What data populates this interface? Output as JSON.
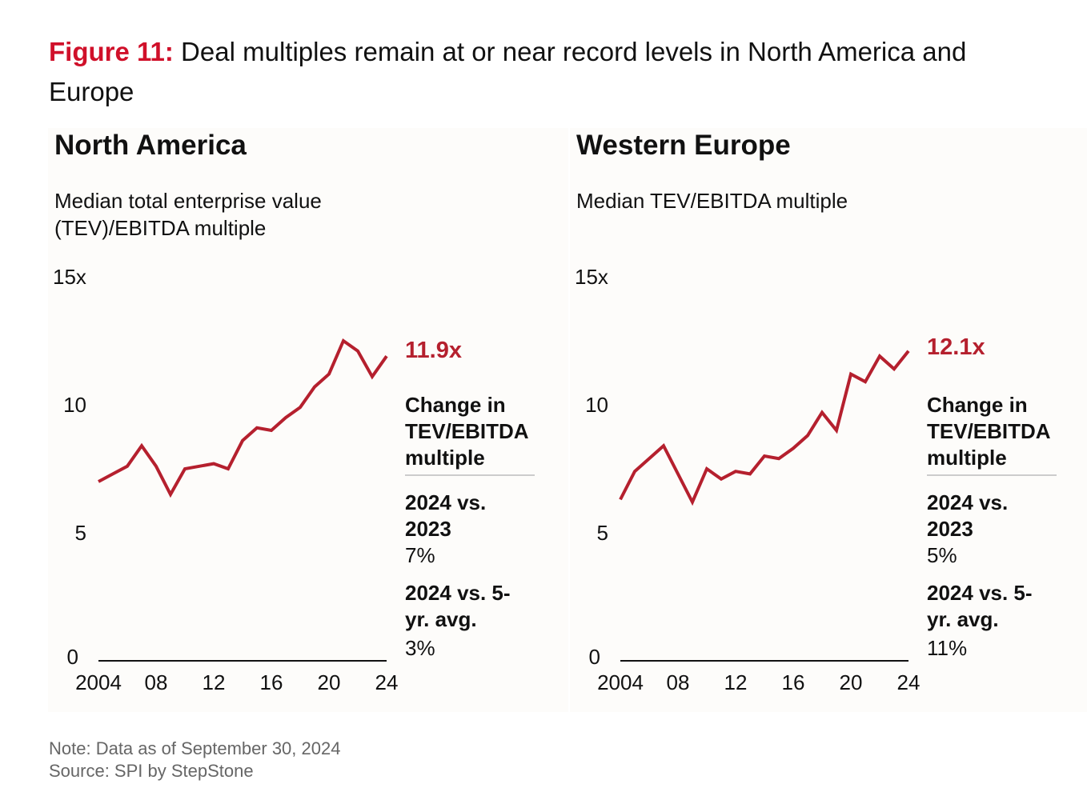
{
  "title": {
    "label": "Figure 11:",
    "text": " Deal multiples remain at or near record levels in North America and Europe"
  },
  "colors": {
    "accent": "#d0102a",
    "line": "#b5202e"
  },
  "panels": [
    {
      "heading": "North America",
      "subtitle": "Median total enterprise value (TEV)/EBITDA multiple",
      "callout": "11.9x",
      "change_heading": "Change in TEV/EBITDA multiple",
      "cmp1_label": "2024 vs. 2023",
      "cmp1_value": "7%",
      "cmp2_label": "2024 vs. 5-yr. avg.",
      "cmp2_value": "3%"
    },
    {
      "heading": "Western Europe",
      "subtitle": "Median TEV/EBITDA multiple",
      "callout": "12.1x",
      "change_heading": "Change in TEV/EBITDA multiple",
      "cmp1_label": "2024 vs. 2023",
      "cmp1_value": "5%",
      "cmp2_label": "2024 vs. 5-yr. avg.",
      "cmp2_value": "11%"
    }
  ],
  "note": "Note: Data as of September 30, 2024",
  "source": "Source: SPI by StepStone",
  "chart_data": [
    {
      "type": "line",
      "title": "North America",
      "ylabel": "Median total enterprise value (TEV)/EBITDA multiple",
      "ylim": [
        0,
        15
      ],
      "yticks": [
        "0",
        "5",
        "10",
        "15x"
      ],
      "xticks": [
        "2004",
        "08",
        "12",
        "16",
        "20",
        "24"
      ],
      "x": [
        2004,
        2005,
        2006,
        2007,
        2008,
        2009,
        2010,
        2011,
        2012,
        2013,
        2014,
        2015,
        2016,
        2017,
        2018,
        2019,
        2020,
        2021,
        2022,
        2023,
        2024
      ],
      "values": [
        7.0,
        7.3,
        7.6,
        8.4,
        7.6,
        6.5,
        7.5,
        7.6,
        7.7,
        7.5,
        8.6,
        9.1,
        9.0,
        9.5,
        9.9,
        10.7,
        11.2,
        12.5,
        12.1,
        11.1,
        11.9
      ]
    },
    {
      "type": "line",
      "title": "Western Europe",
      "ylabel": "Median TEV/EBITDA multiple",
      "ylim": [
        0,
        15
      ],
      "yticks": [
        "0",
        "5",
        "10",
        "15x"
      ],
      "xticks": [
        "2004",
        "08",
        "12",
        "16",
        "20",
        "24"
      ],
      "x": [
        2004,
        2005,
        2006,
        2007,
        2008,
        2009,
        2010,
        2011,
        2012,
        2013,
        2014,
        2015,
        2016,
        2017,
        2018,
        2019,
        2020,
        2021,
        2022,
        2023,
        2024
      ],
      "values": [
        6.3,
        7.4,
        7.9,
        8.4,
        7.3,
        6.2,
        7.5,
        7.1,
        7.4,
        7.3,
        8.0,
        7.9,
        8.3,
        8.8,
        9.7,
        9.0,
        11.2,
        10.9,
        11.9,
        11.4,
        12.1
      ]
    }
  ]
}
